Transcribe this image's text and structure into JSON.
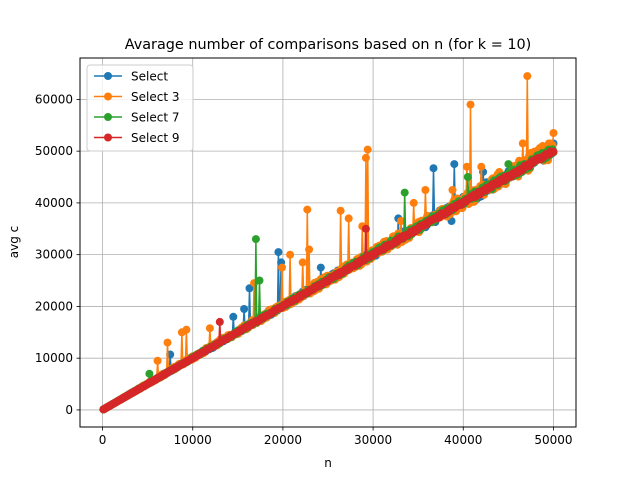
{
  "chart_data": {
    "type": "line",
    "title": "Avarage number of comparisons based on n (for k = 10)",
    "xlabel": "n",
    "ylabel": "avg c",
    "xlim": [
      -2500,
      52500
    ],
    "ylim": [
      -3300,
      68000
    ],
    "xticks": [
      0,
      10000,
      20000,
      30000,
      40000,
      50000
    ],
    "xtick_labels": [
      "0",
      "10000",
      "20000",
      "30000",
      "40000",
      "50000"
    ],
    "yticks": [
      0,
      10000,
      20000,
      30000,
      40000,
      50000,
      60000
    ],
    "ytick_labels": [
      "0",
      "10000",
      "20000",
      "30000",
      "40000",
      "50000",
      "60000"
    ],
    "grid": true,
    "legend": "top-left",
    "x_start": 100,
    "x_step": 100,
    "x_end": 50000,
    "series": [
      {
        "name": "Select",
        "color": "#1f77b4",
        "base_slope": 1.0,
        "noise": 0.05,
        "seed": 11,
        "spikes": [
          [
            7500,
            10700
          ],
          [
            14500,
            18000
          ],
          [
            15700,
            19500
          ],
          [
            16300,
            23500
          ],
          [
            19500,
            30500
          ],
          [
            19800,
            28500
          ],
          [
            24200,
            27500
          ],
          [
            32800,
            37000
          ],
          [
            36700,
            46700
          ],
          [
            38700,
            36500
          ],
          [
            39000,
            47500
          ],
          [
            42200,
            46000
          ]
        ]
      },
      {
        "name": "Select 3",
        "color": "#ff7f0e",
        "base_slope": 1.0,
        "noise": 0.07,
        "seed": 23,
        "spikes": [
          [
            6100,
            9500
          ],
          [
            7200,
            13000
          ],
          [
            8800,
            15000
          ],
          [
            9300,
            15500
          ],
          [
            11900,
            15800
          ],
          [
            16800,
            24500
          ],
          [
            19900,
            27500
          ],
          [
            20800,
            30000
          ],
          [
            22200,
            28500
          ],
          [
            22700,
            38700
          ],
          [
            22900,
            31000
          ],
          [
            26400,
            38500
          ],
          [
            27300,
            37000
          ],
          [
            28800,
            35500
          ],
          [
            29200,
            48700
          ],
          [
            29400,
            50300
          ],
          [
            33100,
            36500
          ],
          [
            34500,
            40000
          ],
          [
            35800,
            42500
          ],
          [
            38800,
            42500
          ],
          [
            40400,
            47000
          ],
          [
            40800,
            59000
          ],
          [
            42000,
            47000
          ],
          [
            46600,
            51500
          ],
          [
            47100,
            64500
          ],
          [
            48800,
            51000
          ],
          [
            49600,
            51500
          ],
          [
            50000,
            53500
          ]
        ]
      },
      {
        "name": "Select 7",
        "color": "#2ca02c",
        "base_slope": 1.0,
        "noise": 0.035,
        "seed": 37,
        "spikes": [
          [
            5200,
            7000
          ],
          [
            17000,
            33000
          ],
          [
            17400,
            25000
          ],
          [
            33500,
            42000
          ],
          [
            40500,
            45000
          ],
          [
            45000,
            47500
          ]
        ]
      },
      {
        "name": "Select 9",
        "color": "#d62728",
        "base_slope": 1.0,
        "noise": 0.015,
        "seed": 53,
        "spikes": [
          [
            13000,
            17000
          ],
          [
            29200,
            35000
          ]
        ]
      }
    ]
  }
}
